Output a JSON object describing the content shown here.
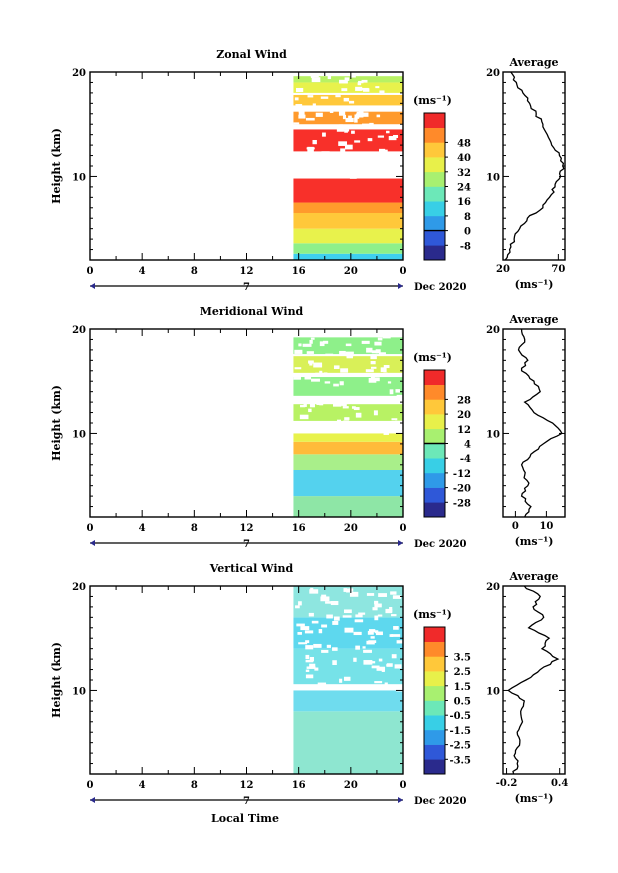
{
  "figure": {
    "xlabel": "Local Time",
    "month_label": "Dec 2020",
    "day_label": "7",
    "height_label": "Height (km)",
    "unit_label": "(ms⁻¹)",
    "average_title": "Average"
  },
  "chart_data": [
    {
      "type": "heatmap",
      "title": "Zonal Wind",
      "xlabel": "Local Time",
      "ylabel": "Height (km)",
      "x_ticks": [
        "0",
        "4",
        "8",
        "12",
        "16",
        "20",
        "0"
      ],
      "y_ticks": [
        "10",
        "20"
      ],
      "xlim": [
        0,
        24
      ],
      "ylim": [
        2,
        20
      ],
      "data_start_hour": 15.6,
      "colorbar": {
        "label": "(ms⁻¹)",
        "levels": [
          "-8",
          "0",
          "8",
          "16",
          "24",
          "32",
          "40",
          "48"
        ],
        "zero_line": "0"
      },
      "profile": {
        "title": "Average",
        "xlabel": "(ms⁻¹)",
        "x_ticks": [
          "20",
          "70"
        ],
        "xlim": [
          20,
          76
        ],
        "y_ticks": [
          "10",
          "20"
        ],
        "heights": [
          2,
          3,
          4,
          5,
          6,
          7,
          8,
          9,
          10,
          11,
          12,
          13,
          14,
          15,
          16,
          17,
          18,
          19,
          20
        ],
        "values": [
          22,
          26,
          30,
          35,
          42,
          56,
          62,
          67,
          72,
          74,
          71,
          64,
          60,
          56,
          50,
          44,
          38,
          32,
          27
        ]
      },
      "bands": [
        {
          "h0": 2.0,
          "h1": 2.6,
          "color": "#3fd0ef"
        },
        {
          "h0": 2.6,
          "h1": 3.6,
          "color": "#8ef08a"
        },
        {
          "h0": 3.6,
          "h1": 5.0,
          "color": "#e8f24c"
        },
        {
          "h0": 5.0,
          "h1": 6.5,
          "color": "#ffc83a"
        },
        {
          "h0": 6.5,
          "h1": 7.5,
          "color": "#ff9a2c"
        },
        {
          "h0": 7.5,
          "h1": 9.8,
          "color": "#f8302a"
        },
        {
          "h0": 12.4,
          "h1": 14.5,
          "color": "#f8302a"
        },
        {
          "h0": 15.0,
          "h1": 16.2,
          "color": "#ff9a2c"
        },
        {
          "h0": 16.8,
          "h1": 17.8,
          "color": "#ffc83a"
        },
        {
          "h0": 18.0,
          "h1": 19.0,
          "color": "#e8f24c"
        },
        {
          "h0": 19.0,
          "h1": 19.6,
          "color": "#b8f264"
        }
      ]
    },
    {
      "type": "heatmap",
      "title": "Meridional Wind",
      "xlabel": "Local Time",
      "ylabel": "Height (km)",
      "x_ticks": [
        "0",
        "4",
        "8",
        "12",
        "16",
        "20",
        "0"
      ],
      "y_ticks": [
        "10",
        "20"
      ],
      "xlim": [
        0,
        24
      ],
      "ylim": [
        2,
        20
      ],
      "data_start_hour": 15.6,
      "colorbar": {
        "label": "(ms⁻¹)",
        "levels": [
          "-28",
          "-20",
          "-12",
          "-4",
          "4",
          "12",
          "20",
          "28"
        ],
        "zero_line": "0"
      },
      "profile": {
        "title": "Average",
        "xlabel": "(ms⁻¹)",
        "x_ticks": [
          "0",
          "10"
        ],
        "xlim": [
          -4,
          16
        ],
        "y_ticks": [
          "10",
          "20"
        ],
        "heights": [
          2,
          3,
          4,
          5,
          6,
          7,
          8,
          9,
          10,
          11,
          12,
          13,
          14,
          15,
          16,
          17,
          18,
          19,
          20
        ],
        "values": [
          3,
          5,
          2,
          4,
          3,
          2,
          5,
          9,
          15,
          12,
          6,
          3,
          8,
          6,
          2,
          4,
          1,
          3,
          2
        ]
      },
      "bands": [
        {
          "h0": 2.0,
          "h1": 4.0,
          "color": "#8ee6a6"
        },
        {
          "h0": 4.0,
          "h1": 6.5,
          "color": "#54d2ee"
        },
        {
          "h0": 6.5,
          "h1": 8.0,
          "color": "#a9ef8a"
        },
        {
          "h0": 8.0,
          "h1": 9.2,
          "color": "#ffbb3a"
        },
        {
          "h0": 9.2,
          "h1": 10.0,
          "color": "#e8f24c"
        },
        {
          "h0": 11.2,
          "h1": 12.8,
          "color": "#b8f264"
        },
        {
          "h0": 13.6,
          "h1": 15.4,
          "color": "#8ef08a"
        },
        {
          "h0": 15.8,
          "h1": 17.4,
          "color": "#d9f058"
        },
        {
          "h0": 17.6,
          "h1": 19.2,
          "color": "#8ef08a"
        }
      ]
    },
    {
      "type": "heatmap",
      "title": "Vertical Wind",
      "xlabel": "Local Time",
      "ylabel": "Height (km)",
      "x_ticks": [
        "0",
        "4",
        "8",
        "12",
        "16",
        "20",
        "0"
      ],
      "y_ticks": [
        "10",
        "20"
      ],
      "xlim": [
        0,
        24
      ],
      "ylim": [
        2,
        20
      ],
      "data_start_hour": 15.6,
      "colorbar": {
        "label": "(ms⁻¹)",
        "levels": [
          "-3.5",
          "-2.5",
          "-1.5",
          "-0.5",
          "0.5",
          "1.5",
          "2.5",
          "3.5"
        ],
        "zero_line": ""
      },
      "profile": {
        "title": "Average",
        "xlabel": "(ms⁻¹)",
        "x_ticks": [
          "-0.2",
          "0.4"
        ],
        "xlim": [
          -0.24,
          0.46
        ],
        "y_ticks": [
          "10",
          "20"
        ],
        "heights": [
          2,
          3,
          4,
          5,
          6,
          7,
          8,
          9,
          10,
          11,
          12,
          13,
          14,
          15,
          16,
          17,
          18,
          19,
          20
        ],
        "values": [
          -0.12,
          -0.08,
          -0.1,
          -0.05,
          -0.08,
          -0.02,
          -0.04,
          0.0,
          -0.18,
          0.02,
          0.18,
          0.38,
          0.2,
          0.28,
          0.05,
          0.22,
          0.1,
          0.18,
          0.0
        ]
      },
      "bands": [
        {
          "h0": 2.0,
          "h1": 8.0,
          "color": "#8ee6d0"
        },
        {
          "h0": 8.0,
          "h1": 10.0,
          "color": "#6fdcee"
        },
        {
          "h0": 10.6,
          "h1": 14.0,
          "color": "#76e2e8"
        },
        {
          "h0": 14.0,
          "h1": 17.0,
          "color": "#5ed8ee"
        },
        {
          "h0": 17.0,
          "h1": 20.0,
          "color": "#8ee6e0"
        }
      ]
    }
  ]
}
